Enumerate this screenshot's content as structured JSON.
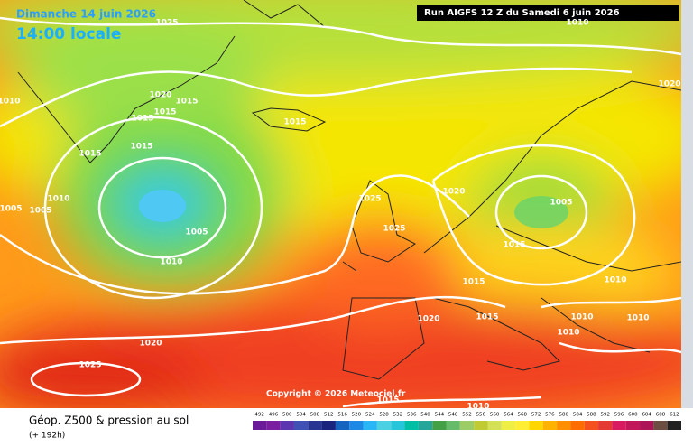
{
  "header": {
    "date": "Dimanche 14 juin 2026",
    "time": "14:00 locale",
    "run": "Run AIGFS 12 Z du Samedi 6 juin 2026"
  },
  "map": {
    "isobar_labels": [
      1025,
      1010,
      1020,
      1015,
      1015,
      1015,
      1015,
      1015,
      1015,
      1010,
      1005,
      1005,
      1005,
      1010,
      1025,
      1025,
      1020,
      1005,
      1015,
      1015,
      1015,
      1020,
      1010,
      1010,
      1010,
      1010,
      1020,
      1025,
      1015,
      1010,
      1020,
      1010
    ],
    "copyright": "Copyright © 2026 Meteociel.fr"
  },
  "footer": {
    "title": "Géop. Z500 & pression au sol",
    "lead": "(+ 192h)",
    "scale": {
      "values": [
        492,
        496,
        500,
        504,
        508,
        512,
        516,
        520,
        524,
        528,
        532,
        536,
        540,
        544,
        548,
        552,
        556,
        560,
        564,
        568,
        572,
        576,
        580,
        584,
        588,
        592,
        596,
        600,
        604,
        608,
        612
      ],
      "colors": [
        "#6a1b9a",
        "#7b1fa2",
        "#5e35b1",
        "#3f51b5",
        "#283593",
        "#1a237e",
        "#1565c0",
        "#1e88e5",
        "#29b6f6",
        "#4dd0e1",
        "#26c6da",
        "#00bfa5",
        "#26a69a",
        "#43a047",
        "#66bb6a",
        "#9ccc65",
        "#c0ca33",
        "#d4e157",
        "#eeee44",
        "#ffee33",
        "#ffd600",
        "#ffb300",
        "#ff8f00",
        "#ff6d00",
        "#f4511e",
        "#e53935",
        "#d81b60",
        "#c2185b",
        "#ad1457",
        "#6d4c41",
        "#212121"
      ]
    }
  }
}
